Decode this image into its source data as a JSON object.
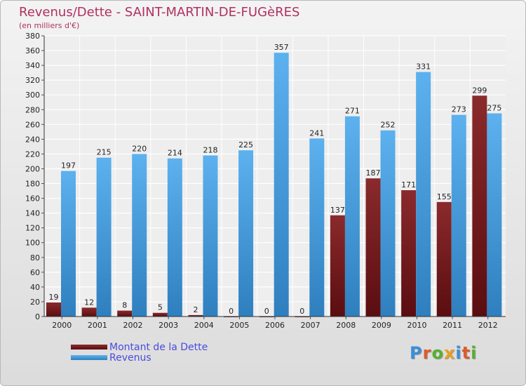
{
  "title": "Revenus/Dette - SAINT-MARTIN-DE-FUGèRES",
  "subtitle": "(en milliers d'€)",
  "legend": {
    "dette": "Montant de la Dette",
    "revenus": "Revenus"
  },
  "logo": "Proxiti",
  "colors": {
    "dette": "#7a1a1c",
    "revenus": "#4aa0e0",
    "title": "#b03060",
    "legend_text": "#4a4ae0"
  },
  "chart_data": {
    "type": "bar",
    "categories": [
      "2000",
      "2001",
      "2002",
      "2003",
      "2004",
      "2005",
      "2006",
      "2007",
      "2008",
      "2009",
      "2010",
      "2011",
      "2012"
    ],
    "series": [
      {
        "name": "Montant de la Dette",
        "values": [
          19,
          12,
          8,
          5,
          2,
          0,
          0,
          0,
          137,
          187,
          171,
          155,
          299
        ]
      },
      {
        "name": "Revenus",
        "values": [
          197,
          215,
          220,
          214,
          218,
          225,
          357,
          241,
          271,
          252,
          331,
          273,
          275
        ]
      }
    ],
    "ylim": [
      0,
      380
    ],
    "yticks": [
      0,
      20,
      40,
      60,
      80,
      100,
      120,
      140,
      160,
      180,
      200,
      220,
      240,
      260,
      280,
      300,
      320,
      340,
      360,
      380
    ],
    "grid": true,
    "legend_position": "bottom-left"
  }
}
